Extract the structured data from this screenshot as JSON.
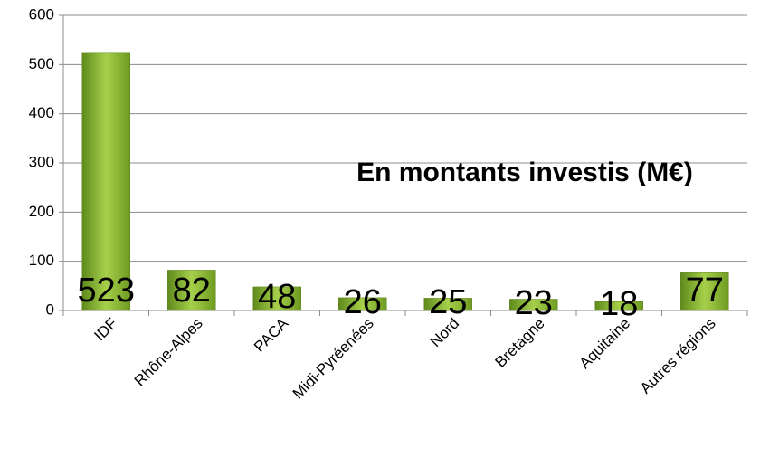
{
  "chart_data": {
    "type": "bar",
    "title": "En montants investis (M€)",
    "categories": [
      "IDF",
      "Rhône-Alpes",
      "PACA",
      "Midi-Pyréenées",
      "Nord",
      "Bretagne",
      "Aquitaine",
      "Autres régions"
    ],
    "values": [
      523,
      82,
      48,
      26,
      25,
      23,
      18,
      77
    ],
    "color": "#8db52f",
    "ylim": [
      0,
      600
    ],
    "yticks": [
      0,
      100,
      200,
      300,
      400,
      500,
      600
    ],
    "grid": true
  }
}
